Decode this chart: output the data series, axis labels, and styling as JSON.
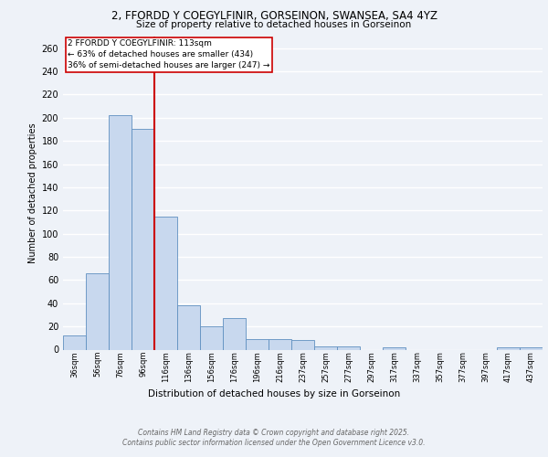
{
  "title_line1": "2, FFORDD Y COEGYLFINIR, GORSEINON, SWANSEA, SA4 4YZ",
  "title_line2": "Size of property relative to detached houses in Gorseinon",
  "xlabel": "Distribution of detached houses by size in Gorseinon",
  "ylabel": "Number of detached properties",
  "categories": [
    "36sqm",
    "56sqm",
    "76sqm",
    "96sqm",
    "116sqm",
    "136sqm",
    "156sqm",
    "176sqm",
    "196sqm",
    "216sqm",
    "237sqm",
    "257sqm",
    "277sqm",
    "297sqm",
    "317sqm",
    "337sqm",
    "357sqm",
    "377sqm",
    "397sqm",
    "417sqm",
    "437sqm"
  ],
  "values": [
    12,
    66,
    202,
    190,
    115,
    38,
    20,
    27,
    9,
    9,
    8,
    3,
    3,
    0,
    2,
    0,
    0,
    0,
    0,
    2,
    2
  ],
  "bar_color": "#c8d8ee",
  "bar_edge_color": "#6090c0",
  "vline_color": "#cc0000",
  "annotation_title": "2 FFORDD Y COEGYLFINIR: 113sqm",
  "annotation_line1": "← 63% of detached houses are smaller (434)",
  "annotation_line2": "36% of semi-detached houses are larger (247) →",
  "annotation_box_color": "#cc0000",
  "footer_line1": "Contains HM Land Registry data © Crown copyright and database right 2025.",
  "footer_line2": "Contains public sector information licensed under the Open Government Licence v3.0.",
  "ylim": [
    0,
    270
  ],
  "yticks": [
    0,
    20,
    40,
    60,
    80,
    100,
    120,
    140,
    160,
    180,
    200,
    220,
    240,
    260
  ],
  "background_color": "#eef2f8",
  "grid_color": "#ffffff"
}
